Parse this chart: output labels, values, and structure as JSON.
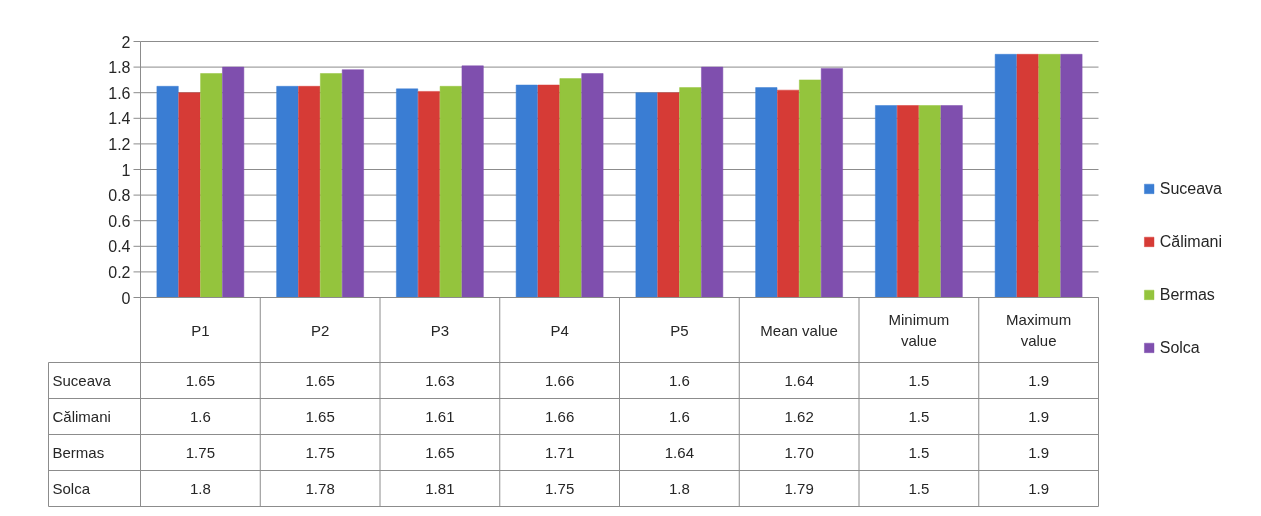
{
  "chart_data": {
    "type": "bar",
    "categories": [
      "P1",
      "P2",
      "P3",
      "P4",
      "P5",
      "Mean value",
      "Minimum value",
      "Maximum value"
    ],
    "series": [
      {
        "name": "Suceava",
        "color": "#3a7dd3",
        "values": [
          1.65,
          1.65,
          1.63,
          1.66,
          1.6,
          1.64,
          1.5,
          1.9
        ],
        "value_labels": [
          "1.65",
          "1.65",
          "1.63",
          "1.66",
          "1.6",
          "1.64",
          "1.5",
          "1.9"
        ]
      },
      {
        "name": "Călimani",
        "color": "#d63b36",
        "values": [
          1.6,
          1.65,
          1.61,
          1.66,
          1.6,
          1.62,
          1.5,
          1.9
        ],
        "value_labels": [
          "1.6",
          "1.65",
          "1.61",
          "1.66",
          "1.6",
          "1.62",
          "1.5",
          "1.9"
        ]
      },
      {
        "name": "Bermas",
        "color": "#94c43d",
        "values": [
          1.75,
          1.75,
          1.65,
          1.71,
          1.64,
          1.7,
          1.5,
          1.9
        ],
        "value_labels": [
          "1.75",
          "1.75",
          "1.65",
          "1.71",
          "1.64",
          "1.70",
          "1.5",
          "1.9"
        ]
      },
      {
        "name": "Solca",
        "color": "#7f4fae",
        "values": [
          1.8,
          1.78,
          1.81,
          1.75,
          1.8,
          1.79,
          1.5,
          1.9
        ],
        "value_labels": [
          "1.8",
          "1.78",
          "1.81",
          "1.75",
          "1.8",
          "1.79",
          "1.5",
          "1.9"
        ]
      }
    ],
    "ylim": [
      0,
      2
    ],
    "yticks": [
      0,
      0.2,
      0.4,
      0.6,
      0.8,
      1,
      1.2,
      1.4,
      1.6,
      1.8,
      2
    ],
    "grid": "y",
    "legend": "right"
  }
}
